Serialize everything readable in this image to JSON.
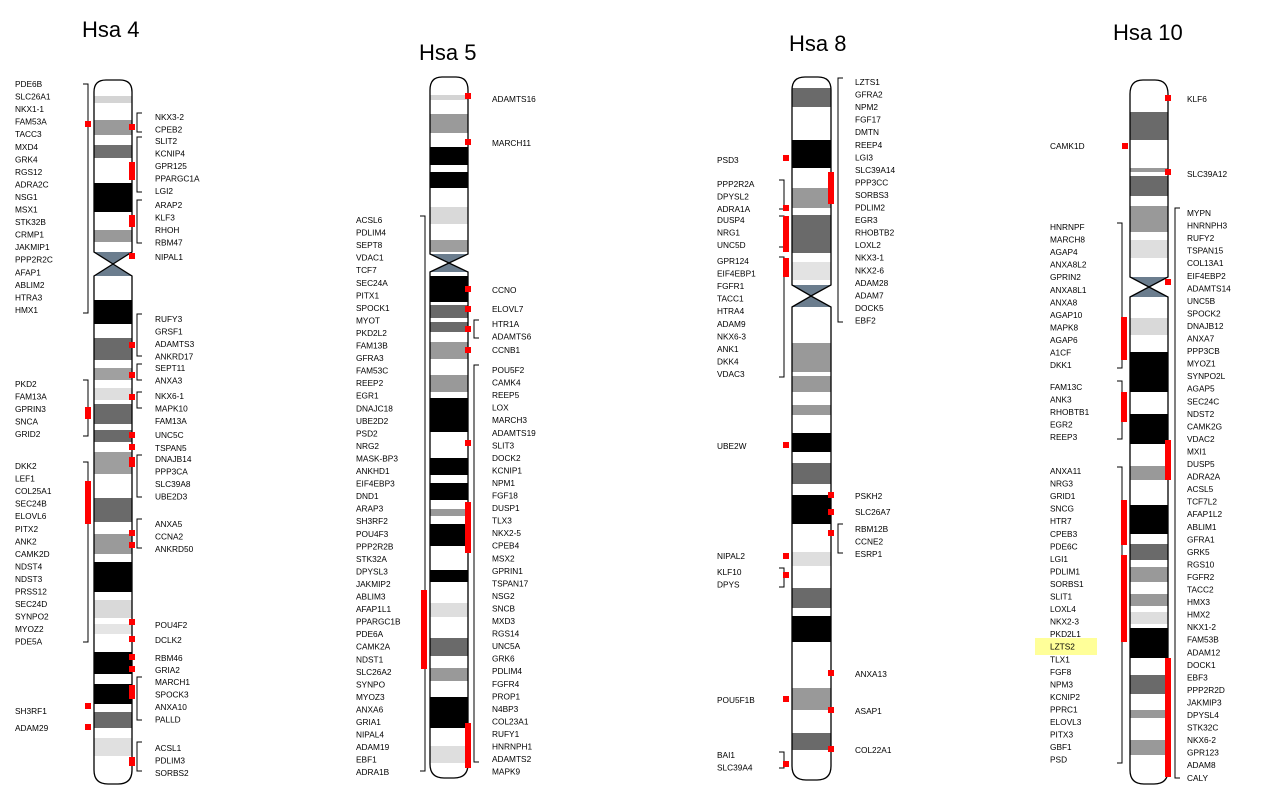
{
  "chromosomes": [
    {
      "id": "hsa4",
      "title": "Hsa 4",
      "left_groups": [
        {
          "genes": [
            "PDE6B",
            "SLC26A1",
            "NKX1-1",
            "FAM53A",
            "TACC3",
            "MXD4",
            "GRK4",
            "RGS12",
            "ADRA2C",
            "NSG1",
            "MSX1",
            "STK32B",
            "CRMP1",
            "JAKMIP1",
            "PPP2R2C",
            "AFAP1",
            "ABLIM2",
            "HTRA3",
            "HMX1"
          ]
        },
        {
          "genes": [
            "PKD2",
            "FAM13A",
            "GPRIN3",
            "SNCA",
            "GRID2"
          ]
        },
        {
          "genes": [
            "DKK2",
            "LEF1",
            "COL25A1",
            "SEC24B",
            "ELOVL6",
            "PITX2",
            "ANK2",
            "CAMK2D",
            "NDST4",
            "NDST3",
            "PRSS12",
            "SEC24D",
            "SYNPO2",
            "MYOZ2",
            "PDE5A"
          ]
        },
        {
          "genes": [
            "SH3RF1"
          ]
        },
        {
          "genes": [
            "ADAM29"
          ]
        }
      ],
      "right_groups": [
        {
          "genes": [
            "NKX3-2",
            "CPEB2"
          ]
        },
        {
          "genes": [
            "SLIT2",
            "KCNIP4",
            "GPR125",
            "PPARGC1A",
            "LGI2"
          ]
        },
        {
          "genes": [
            "ARAP2",
            "KLF3",
            "RHOH",
            "RBM47"
          ]
        },
        {
          "genes": [
            "NIPAL1"
          ]
        },
        {
          "genes": [
            "RUFY3",
            "GRSF1",
            "ADAMTS3",
            "ANKRD17"
          ]
        },
        {
          "genes": [
            "SEPT11",
            "ANXA3"
          ]
        },
        {
          "genes": [
            "NKX6-1",
            "MAPK10",
            "FAM13A"
          ]
        },
        {
          "genes": [
            "UNC5C"
          ]
        },
        {
          "genes": [
            "TSPAN5"
          ]
        },
        {
          "genes": [
            "DNAJB14",
            "PPP3CA",
            "SLC39A8",
            "UBE2D3"
          ]
        },
        {
          "genes": [
            "ANXA5",
            "CCNA2",
            "ANKRD50"
          ]
        },
        {
          "genes": [
            "POU4F2"
          ]
        },
        {
          "genes": [
            "DCLK2"
          ]
        },
        {
          "genes": [
            "RBM46"
          ]
        },
        {
          "genes": [
            "GRIA2"
          ]
        },
        {
          "genes": [
            "MARCH1",
            "SPOCK3",
            "ANXA10",
            "PALLD"
          ]
        },
        {
          "genes": [
            "ACSL1",
            "PDLIM3",
            "SORBS2"
          ]
        }
      ]
    },
    {
      "id": "hsa5",
      "title": "Hsa 5",
      "left_groups": [
        {
          "genes": [
            "ACSL6",
            "PDLIM4",
            "SEPT8",
            "VDAC1",
            "TCF7",
            "SEC24A",
            "PITX1",
            "SPOCK1",
            "MYOT",
            "PKD2L2",
            "FAM13B",
            "GFRA3",
            "FAM53C",
            "REEP2",
            "EGR1",
            "DNAJC18",
            "UBE2D2",
            "PSD2",
            "NRG2",
            "MASK-BP3",
            "ANKHD1",
            "EIF4EBP3",
            "DND1",
            "ARAP3",
            "SH3RF2",
            "POU4F3",
            "PPP2R2B",
            "STK32A",
            "DPYSL3",
            "JAKMIP2",
            "ABLIM3",
            "AFAP1L1",
            "PPARGC1B",
            "PDE6A",
            "CAMK2A",
            "NDST1",
            "SLC26A2",
            "SYNPO",
            "MYOZ3",
            "ANXA6",
            "GRIA1",
            "NIPAL4",
            "ADAM19",
            "EBF1",
            "ADRA1B"
          ]
        }
      ],
      "right_groups": [
        {
          "genes": [
            "ADAMTS16"
          ]
        },
        {
          "genes": [
            "MARCH11"
          ]
        },
        {
          "genes": [
            "CCNO"
          ]
        },
        {
          "genes": [
            "ELOVL7"
          ]
        },
        {
          "genes": [
            "HTR1A",
            "ADAMTS6"
          ]
        },
        {
          "genes": [
            "CCNB1"
          ]
        },
        {
          "genes": [
            "POU5F2",
            "CAMK4",
            "REEP5",
            "LOX",
            "MARCH3",
            "ADAMTS19",
            "SLIT3",
            "DOCK2",
            "KCNIP1",
            "NPM1",
            "FGF18",
            "DUSP1",
            "TLX3",
            "NKX2-5",
            "CPEB4",
            "MSX2",
            "GPRIN1",
            "TSPAN17",
            "NSG2",
            "SNCB",
            "MXD3",
            "RGS14",
            "UNC5A",
            "GRK6",
            "PDLIM4",
            "FGFR4",
            "PROP1",
            "N4BP3",
            "COL23A1",
            "RUFY1",
            "HNRNPH1",
            "ADAMTS2",
            "MAPK9"
          ]
        }
      ]
    },
    {
      "id": "hsa8",
      "title": "Hsa 8",
      "left_groups": [
        {
          "genes": [
            "PSD3"
          ]
        },
        {
          "genes": [
            "PPP2R2A",
            "DPYSL2",
            "ADRA1A"
          ]
        },
        {
          "genes": [
            "DUSP4",
            "NRG1",
            "UNC5D"
          ]
        },
        {
          "genes": [
            "GPR124",
            "EIF4EBP1",
            "FGFR1",
            "TACC1",
            "HTRA4",
            "ADAM9",
            "NKX6-3",
            "ANK1",
            "DKK4",
            "VDAC3"
          ]
        },
        {
          "genes": [
            "UBE2W"
          ]
        },
        {
          "genes": [
            "NIPAL2"
          ]
        },
        {
          "genes": [
            "KLF10",
            "DPYS"
          ]
        },
        {
          "genes": [
            "POU5F1B"
          ]
        },
        {
          "genes": [
            "BAI1",
            "SLC39A4"
          ]
        }
      ],
      "right_groups": [
        {
          "genes": [
            "LZTS1",
            "GFRA2",
            "NPM2",
            "FGF17",
            "DMTN",
            "REEP4",
            "LGI3",
            "SLC39A14",
            "PPP3CC",
            "SORBS3",
            "PDLIM2",
            "EGR3",
            "RHOBTB2",
            "LOXL2",
            "NKX3-1",
            "NKX2-6",
            "ADAM28",
            "ADAM7",
            "DOCK5",
            "EBF2"
          ]
        },
        {
          "genes": [
            "PSKH2"
          ]
        },
        {
          "genes": [
            "SLC26A7"
          ]
        },
        {
          "genes": [
            "RBM12B",
            "CCNE2",
            "ESRP1"
          ]
        },
        {
          "genes": [
            "ANXA13"
          ]
        },
        {
          "genes": [
            "ASAP1"
          ]
        },
        {
          "genes": [
            "COL22A1"
          ]
        }
      ]
    },
    {
      "id": "hsa10",
      "title": "Hsa 10",
      "left_groups": [
        {
          "genes": [
            "CAMK1D"
          ]
        },
        {
          "genes": [
            "HNRNPF",
            "MARCH8",
            "AGAP4",
            "ANXA8L2",
            "GPRIN2",
            "ANXA8L1",
            "ANXA8",
            "AGAP10",
            "MAPK8",
            "AGAP6",
            "A1CF",
            "DKK1"
          ]
        },
        {
          "genes": [
            "FAM13C",
            "ANK3",
            "RHOBTB1",
            "EGR2",
            "REEP3"
          ]
        },
        {
          "genes": [
            "ANXA11",
            "NRG3",
            "GRID1",
            "SNCG",
            "HTR7",
            "CPEB3",
            "PDE6C",
            "LGI1",
            "PDLIM1",
            "SORBS1",
            "SLIT1",
            "LOXL4",
            "NKX2-3",
            "PKD2L1",
            "LZTS2",
            "TLX1",
            "FGF8",
            "NPM3",
            "KCNIP2",
            "PPRC1",
            "ELOVL3",
            "PITX3",
            "GBF1",
            "PSD"
          ]
        }
      ],
      "right_groups": [
        {
          "genes": [
            "KLF6"
          ]
        },
        {
          "genes": [
            "SLC39A12"
          ]
        },
        {
          "genes": [
            "MYPN",
            "HNRNPH3",
            "RUFY2",
            "TSPAN15",
            "COL13A1",
            "EIF4EBP2",
            "ADAMTS14",
            "UNC5B",
            "SPOCK2",
            "DNAJB12",
            "ANXA7",
            "PPP3CB",
            "MYOZ1",
            "SYNPO2L",
            "AGAP5",
            "SEC24C",
            "NDST2",
            "CAMK2G",
            "VDAC2",
            "MXI1",
            "DUSP5",
            "ADRA2A",
            "ACSL5",
            "TCF7L2",
            "AFAP1L2",
            "ABLIM1",
            "GFRA1",
            "GRK5",
            "RGS10",
            "FGFR2",
            "TACC2",
            "HMX3",
            "HMX2",
            "NKX1-2",
            "FAM53B",
            "ADAM12",
            "DOCK1",
            "EBF3",
            "PPP2R2D",
            "JAKMIP3",
            "DPYSL4",
            "STK32C",
            "NKX6-2",
            "GPR123",
            "ADAM8",
            "CALY"
          ]
        }
      ],
      "highlighted_gene": "LZTS2",
      "highlight_color": "#ffff99"
    }
  ],
  "marker_color": "#ff0000"
}
